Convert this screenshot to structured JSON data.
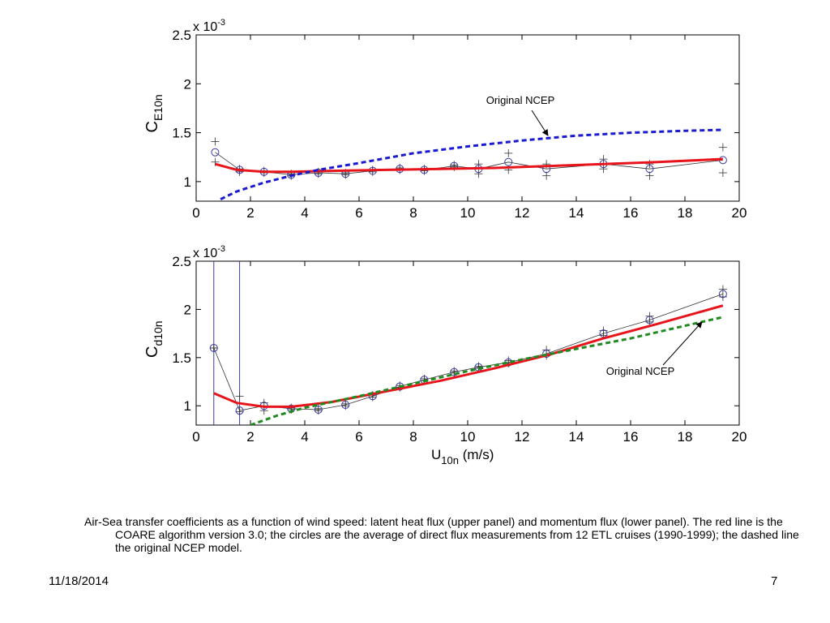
{
  "chart_data": [
    {
      "type": "line",
      "panel": "upper",
      "ylabel_main": "C",
      "ylabel_sub": "E10n",
      "xlabel": "",
      "scale_label": "x 10",
      "scale_exp": "-3",
      "xlim": [
        0,
        20
      ],
      "ylim": [
        0.8,
        2.5
      ],
      "xticks": [
        "0",
        "2",
        "4",
        "6",
        "8",
        "10",
        "12",
        "14",
        "16",
        "18",
        "20"
      ],
      "yticks": [
        "1",
        "1.5",
        "2",
        "2.5"
      ],
      "grid": false,
      "annotation": "Original NCEP",
      "series": [
        {
          "style": "circles-with-line",
          "color": "#000000",
          "x": [
            0.7,
            1.6,
            2.5,
            3.5,
            4.5,
            5.5,
            6.5,
            7.5,
            8.4,
            9.5,
            10.4,
            11.5,
            12.9,
            15.0,
            16.7,
            19.4
          ],
          "y": [
            1.3,
            1.12,
            1.1,
            1.07,
            1.09,
            1.08,
            1.11,
            1.13,
            1.12,
            1.16,
            1.13,
            1.2,
            1.13,
            1.18,
            1.13,
            1.22
          ],
          "y_plus": [
            1.41,
            1.13,
            1.11,
            1.08,
            1.1,
            1.09,
            1.12,
            1.14,
            1.13,
            1.17,
            1.18,
            1.29,
            1.18,
            1.23,
            1.18,
            1.35
          ],
          "y_minus": [
            1.2,
            1.1,
            1.09,
            1.06,
            1.08,
            1.07,
            1.1,
            1.12,
            1.11,
            1.15,
            1.08,
            1.12,
            1.06,
            1.13,
            1.06,
            1.09
          ]
        },
        {
          "style": "solid",
          "color": "#e8141c",
          "x": [
            0.7,
            1.5,
            2.5,
            3.5,
            5,
            7,
            9,
            11,
            13,
            15,
            17,
            19.4
          ],
          "y": [
            1.18,
            1.12,
            1.1,
            1.1,
            1.11,
            1.12,
            1.13,
            1.14,
            1.16,
            1.18,
            1.2,
            1.23
          ]
        },
        {
          "style": "dashed",
          "color": "#1a1ad0",
          "x": [
            0.9,
            1.5,
            2.5,
            3.5,
            4.5,
            6,
            8,
            10,
            12,
            14,
            16,
            18,
            19.4
          ],
          "y": [
            0.82,
            0.9,
            0.99,
            1.06,
            1.12,
            1.19,
            1.29,
            1.36,
            1.42,
            1.47,
            1.5,
            1.52,
            1.53
          ]
        }
      ]
    },
    {
      "type": "line",
      "panel": "lower",
      "ylabel_main": "C",
      "ylabel_sub": "d10n",
      "xlabel_main": "U",
      "xlabel_sub": "10n",
      "xlabel_unit": "(m/s)",
      "scale_label": "x 10",
      "scale_exp": "-3",
      "xlim": [
        0,
        20
      ],
      "ylim": [
        0.8,
        2.5
      ],
      "xticks": [
        "0",
        "2",
        "4",
        "6",
        "8",
        "10",
        "12",
        "14",
        "16",
        "18",
        "20"
      ],
      "yticks": [
        "1",
        "1.5",
        "2",
        "2.5"
      ],
      "grid": false,
      "annotation": "Original NCEP",
      "vertical_markers_x": [
        0.65,
        1.6
      ],
      "series": [
        {
          "style": "circles-with-line",
          "color": "#000000",
          "x": [
            0.65,
            1.6,
            2.5,
            3.5,
            4.5,
            5.5,
            6.5,
            7.5,
            8.4,
            9.5,
            10.4,
            11.5,
            12.9,
            15.0,
            16.7,
            19.4
          ],
          "y": [
            1.6,
            0.95,
            1.0,
            0.97,
            0.96,
            1.01,
            1.1,
            1.2,
            1.27,
            1.35,
            1.4,
            1.45,
            1.54,
            1.75,
            1.89,
            2.16
          ],
          "y_plus": [
            1.6,
            1.1,
            1.03,
            0.98,
            0.97,
            1.02,
            1.11,
            1.21,
            1.28,
            1.36,
            1.41,
            1.47,
            1.58,
            1.78,
            1.93,
            2.21
          ],
          "y_minus": [
            1.6,
            0.94,
            0.95,
            0.96,
            0.95,
            1.0,
            1.09,
            1.19,
            1.26,
            1.34,
            1.39,
            1.44,
            1.52,
            1.73,
            1.87,
            2.13
          ]
        },
        {
          "style": "solid",
          "color": "#e8141c",
          "x": [
            0.65,
            1.5,
            2.5,
            3.5,
            5,
            7,
            9,
            11,
            13,
            15,
            17,
            19.4
          ],
          "y": [
            1.13,
            1.03,
            0.99,
            0.99,
            1.04,
            1.15,
            1.26,
            1.39,
            1.53,
            1.7,
            1.85,
            2.04
          ]
        },
        {
          "style": "dashed",
          "color": "#1f8a1f",
          "x": [
            2.0,
            3,
            4,
            5,
            6,
            8,
            10,
            12,
            14,
            16,
            18,
            19.4
          ],
          "y": [
            0.8,
            0.9,
            0.98,
            1.04,
            1.1,
            1.23,
            1.36,
            1.48,
            1.59,
            1.7,
            1.83,
            1.92
          ]
        }
      ]
    }
  ],
  "caption": "Air-Sea transfer coefficients as a function of wind speed: latent heat flux (upper panel) and momentum flux (lower panel).  The red line is the COARE algorithm version 3.0; the circles are the average of direct flux measurements from 12 ETL cruises (1990-1999); the dashed line the original NCEP model.",
  "footer": {
    "date": "11/18/2014",
    "page": "7"
  }
}
